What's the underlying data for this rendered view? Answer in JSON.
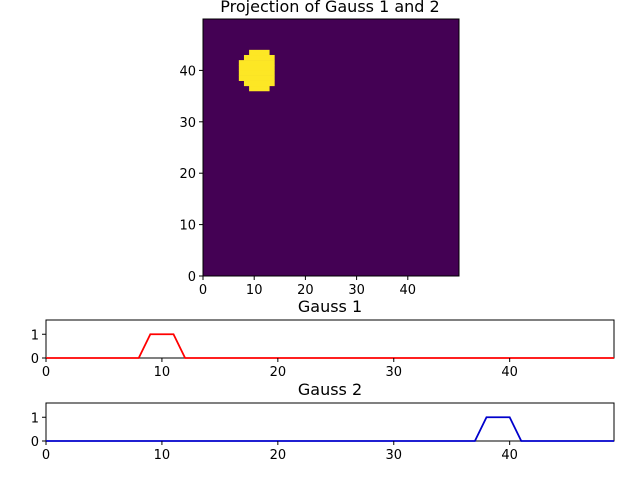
{
  "chart_data": [
    {
      "type": "heatmap",
      "title": "Projection of Gauss 1 and 2",
      "xlim": [
        0,
        49
      ],
      "ylim": [
        0,
        49
      ],
      "xticks": [
        0,
        10,
        20,
        30,
        40
      ],
      "yticks": [
        0,
        10,
        20,
        30,
        40
      ],
      "background_color": "#440154",
      "highlight_color": "#fde725",
      "highlight_region": {
        "rows": [
          {
            "y": 36,
            "x_from": 9,
            "x_to": 12
          },
          {
            "y": 37,
            "x_from": 8,
            "x_to": 13
          },
          {
            "y": 38,
            "x_from": 7,
            "x_to": 13
          },
          {
            "y": 39,
            "x_from": 7,
            "x_to": 13
          },
          {
            "y": 40,
            "x_from": 7,
            "x_to": 13
          },
          {
            "y": 41,
            "x_from": 7,
            "x_to": 13
          },
          {
            "y": 42,
            "x_from": 8,
            "x_to": 13
          },
          {
            "y": 43,
            "x_from": 9,
            "x_to": 12
          }
        ]
      }
    },
    {
      "type": "line",
      "title": "Gauss 1",
      "xlim": [
        0,
        49
      ],
      "ylim": [
        0,
        1.6
      ],
      "xticks": [
        0,
        10,
        20,
        30,
        40
      ],
      "yticks": [
        0,
        1
      ],
      "series": [
        {
          "color": "#ff0000",
          "points": [
            [
              0,
              0
            ],
            [
              8,
              0
            ],
            [
              9,
              1
            ],
            [
              11,
              1
            ],
            [
              12,
              0
            ],
            [
              49,
              0
            ]
          ]
        }
      ]
    },
    {
      "type": "line",
      "title": "Gauss 2",
      "xlim": [
        0,
        49
      ],
      "ylim": [
        0,
        1.6
      ],
      "xticks": [
        0,
        10,
        20,
        30,
        40
      ],
      "yticks": [
        0,
        1
      ],
      "series": [
        {
          "color": "#0000cc",
          "points": [
            [
              0,
              0
            ],
            [
              37,
              0
            ],
            [
              38,
              1
            ],
            [
              40,
              1
            ],
            [
              41,
              0
            ],
            [
              49,
              0
            ]
          ]
        }
      ]
    }
  ]
}
